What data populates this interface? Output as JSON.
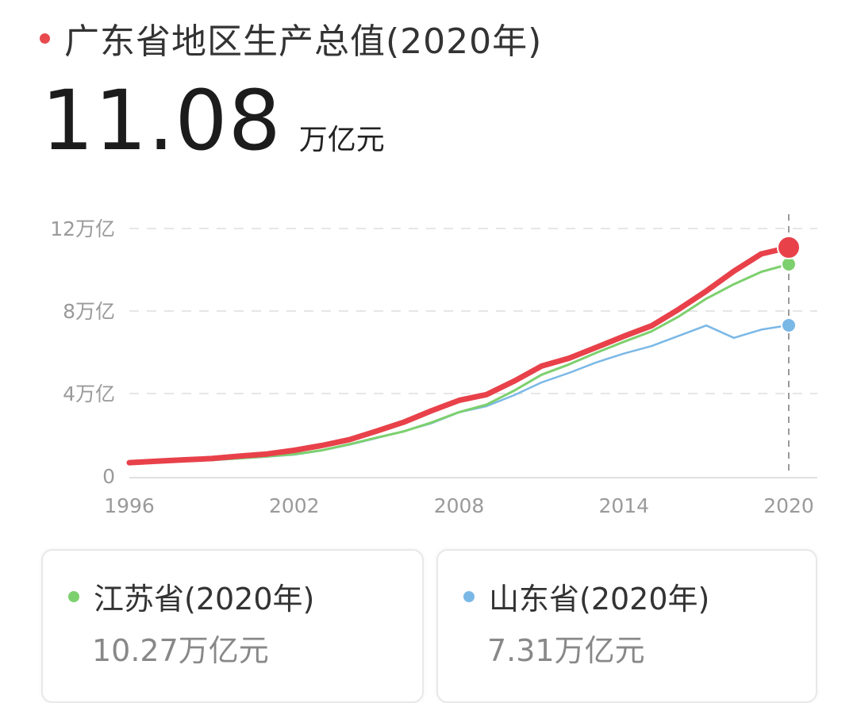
{
  "header": {
    "title": "广东省地区生产总值(2020年)",
    "value": "11.08",
    "unit": "万亿元",
    "dot_color": "#e84a4e"
  },
  "chart_data": {
    "type": "line",
    "x": [
      1996,
      1997,
      1998,
      1999,
      2000,
      2001,
      2002,
      2003,
      2004,
      2005,
      2006,
      2007,
      2008,
      2009,
      2010,
      2011,
      2012,
      2013,
      2014,
      2015,
      2016,
      2017,
      2018,
      2019,
      2020
    ],
    "xticks": [
      "1996",
      "2002",
      "2008",
      "2014",
      "2020"
    ],
    "ylim": [
      0,
      12
    ],
    "yticks": [
      {
        "value": 0,
        "label": "0"
      },
      {
        "value": 4,
        "label": "4万亿"
      },
      {
        "value": 8,
        "label": "8万亿"
      },
      {
        "value": 12,
        "label": "12万亿"
      }
    ],
    "grid": true,
    "series": [
      {
        "name": "山东省",
        "color": "#7ab8e6",
        "values": [
          0.61,
          0.66,
          0.72,
          0.77,
          0.85,
          0.94,
          1.04,
          1.24,
          1.52,
          1.84,
          2.18,
          2.56,
          3.09,
          3.39,
          3.92,
          4.54,
          5.0,
          5.51,
          5.94,
          6.3,
          6.8,
          7.3,
          6.7,
          7.1,
          7.31
        ]
      },
      {
        "name": "江苏省",
        "color": "#7dd06e",
        "values": [
          0.62,
          0.68,
          0.74,
          0.78,
          0.86,
          0.95,
          1.06,
          1.25,
          1.54,
          1.86,
          2.17,
          2.6,
          3.1,
          3.46,
          4.14,
          4.91,
          5.41,
          5.98,
          6.51,
          7.01,
          7.74,
          8.6,
          9.3,
          9.9,
          10.27
        ]
      },
      {
        "name": "广东省",
        "color": "#e8414a",
        "values": [
          0.65,
          0.72,
          0.79,
          0.85,
          0.97,
          1.07,
          1.25,
          1.48,
          1.76,
          2.18,
          2.62,
          3.17,
          3.67,
          3.95,
          4.6,
          5.33,
          5.71,
          6.24,
          6.78,
          7.28,
          8.09,
          8.97,
          9.93,
          10.77,
          11.08
        ]
      }
    ]
  },
  "cards": [
    {
      "title": "江苏省(2020年)",
      "value": "10.27万亿元",
      "dot_color": "#7dd06e"
    },
    {
      "title": "山东省(2020年)",
      "value": "7.31万亿元",
      "dot_color": "#7ab8e6"
    }
  ]
}
